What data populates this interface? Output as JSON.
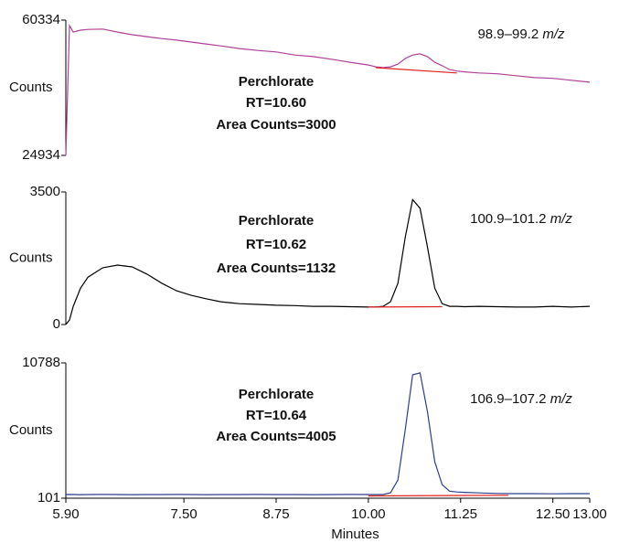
{
  "chart_data": [
    {
      "type": "line",
      "ylabel": "Counts",
      "compound": "Perchlorate",
      "retention": "RT=10.60",
      "area": "Area Counts=3000",
      "mass_range": "98.9–99.2",
      "mass_unit": "m/z",
      "xlim": [
        5.9,
        13.0
      ],
      "ylim": [
        24934,
        60334
      ],
      "yticks": [
        24934,
        60334
      ],
      "x": [
        5.9,
        5.95,
        6.0,
        6.1,
        6.2,
        6.4,
        6.6,
        6.8,
        7.0,
        7.2,
        7.4,
        7.6,
        7.8,
        8.0,
        8.25,
        8.5,
        8.75,
        9.0,
        9.25,
        9.5,
        9.75,
        10.0,
        10.1,
        10.2,
        10.3,
        10.4,
        10.5,
        10.6,
        10.7,
        10.8,
        10.9,
        11.0,
        11.1,
        11.2,
        11.3,
        11.5,
        11.75,
        12.0,
        12.25,
        12.5,
        12.75,
        13.0
      ],
      "series": [
        {
          "color": "#b0409a",
          "values": [
            24934,
            58900,
            57200,
            57700,
            57900,
            58000,
            57200,
            56500,
            56000,
            55500,
            55100,
            54600,
            54100,
            53600,
            52900,
            52400,
            52000,
            51200,
            50800,
            50100,
            49300,
            48600,
            48100,
            47900,
            48100,
            48800,
            50300,
            51200,
            51500,
            50800,
            49300,
            48400,
            47400,
            47000,
            46800,
            46500,
            46300,
            45800,
            45300,
            45100,
            44600,
            44100
          ]
        },
        {
          "color": "#e0201a",
          "x": [
            10.1,
            11.2
          ],
          "values": [
            47900,
            46500
          ]
        }
      ]
    },
    {
      "type": "line",
      "ylabel": "Counts",
      "compound": "Perchlorate",
      "retention": "RT=10.62",
      "area": "Area Counts=1132",
      "mass_range": "100.9–101.2",
      "mass_unit": "m/z",
      "xlim": [
        5.9,
        13.0
      ],
      "ylim": [
        0,
        3500
      ],
      "yticks": [
        0,
        3500
      ],
      "x": [
        5.9,
        5.95,
        6.0,
        6.1,
        6.2,
        6.4,
        6.6,
        6.8,
        7.0,
        7.2,
        7.4,
        7.6,
        7.8,
        8.0,
        8.25,
        8.5,
        8.75,
        9.0,
        9.25,
        9.5,
        9.75,
        10.0,
        10.1,
        10.2,
        10.3,
        10.4,
        10.5,
        10.6,
        10.7,
        10.8,
        10.9,
        11.0,
        11.1,
        11.2,
        11.3,
        11.5,
        11.75,
        12.0,
        12.25,
        12.5,
        12.75,
        13.0
      ],
      "series": [
        {
          "color": "#000000",
          "values": [
            0,
            120,
            480,
            960,
            1250,
            1500,
            1570,
            1520,
            1330,
            1090,
            890,
            770,
            680,
            600,
            550,
            530,
            510,
            500,
            480,
            480,
            470,
            460,
            460,
            480,
            600,
            1090,
            2300,
            3300,
            3070,
            2050,
            960,
            550,
            480,
            480,
            470,
            480,
            470,
            460,
            460,
            480,
            460,
            480
          ]
        },
        {
          "color": "#e0201a",
          "x": [
            10.0,
            11.0
          ],
          "values": [
            460,
            470
          ]
        }
      ]
    },
    {
      "type": "line",
      "ylabel": "Counts",
      "xlabel": "Minutes",
      "compound": "Perchlorate",
      "retention": "RT=10.64",
      "area": "Area Counts=4005",
      "mass_range": "106.9–107.2",
      "mass_unit": "m/z",
      "xlim": [
        5.9,
        13.0
      ],
      "ylim": [
        101,
        10788
      ],
      "yticks": [
        101,
        10788
      ],
      "xticks": [
        {
          "value": 5.9,
          "label": "5.90"
        },
        {
          "value": 7.5,
          "label": "7.50"
        },
        8.75,
        {
          "value": 10.0,
          "label": "10.00"
        },
        11.25,
        {
          "value": 12.5,
          "label": "12.50"
        },
        {
          "value": 13.0,
          "label": "13.00"
        }
      ],
      "x": [
        5.9,
        5.95,
        6.0,
        6.1,
        6.2,
        6.4,
        6.6,
        6.8,
        7.0,
        7.2,
        7.4,
        7.6,
        7.8,
        8.0,
        8.25,
        8.5,
        8.75,
        9.0,
        9.25,
        9.5,
        9.75,
        10.0,
        10.1,
        10.2,
        10.3,
        10.4,
        10.5,
        10.6,
        10.7,
        10.8,
        10.9,
        11.0,
        11.1,
        11.2,
        11.3,
        11.5,
        11.75,
        12.0,
        12.25,
        12.5,
        12.75,
        13.0
      ],
      "series": [
        {
          "color": "#2c3f8f",
          "values": [
            390,
            400,
            390,
            380,
            390,
            400,
            390,
            380,
            390,
            390,
            400,
            390,
            380,
            390,
            390,
            400,
            390,
            390,
            380,
            390,
            400,
            390,
            390,
            390,
            530,
            1540,
            5500,
            9850,
            10000,
            6950,
            2980,
            1170,
            660,
            590,
            560,
            520,
            480,
            460,
            460,
            450,
            460,
            460
          ]
        },
        {
          "color": "#e0201a",
          "x": [
            10.0,
            11.9
          ],
          "values": [
            280,
            330
          ]
        }
      ]
    }
  ]
}
